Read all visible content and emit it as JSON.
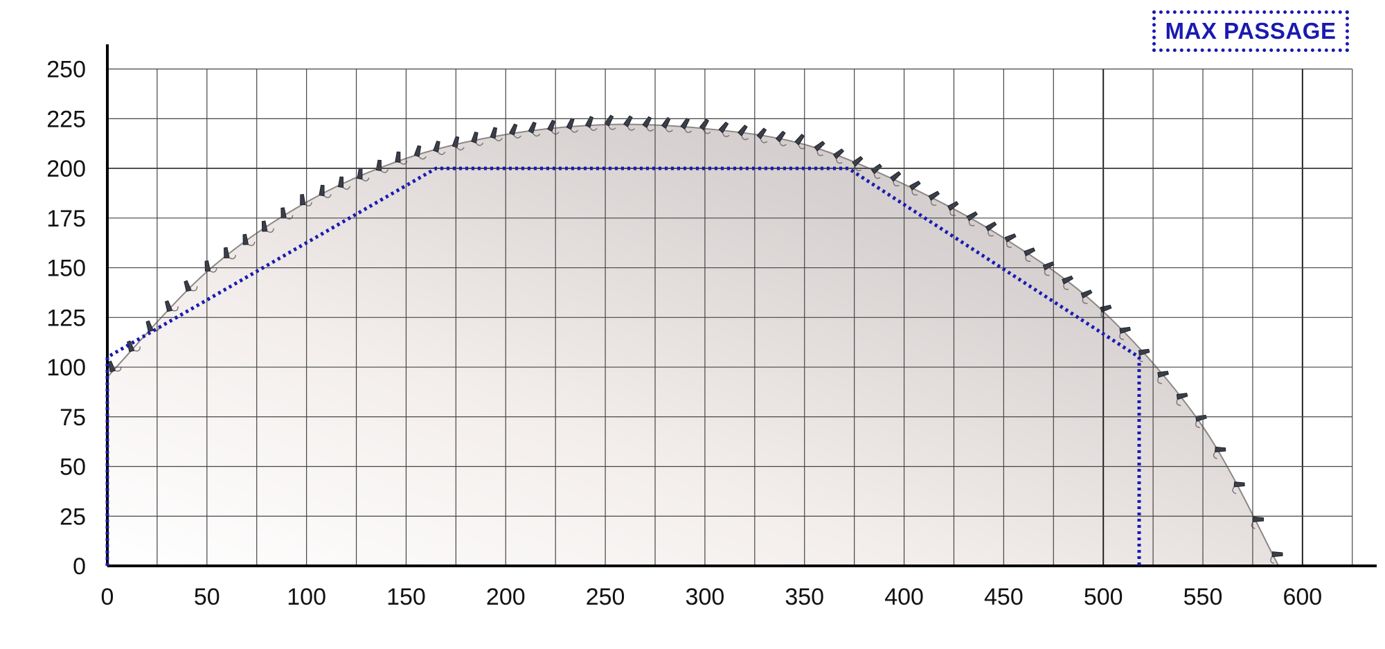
{
  "chart_data": {
    "type": "area",
    "title": "",
    "xlabel": "",
    "ylabel": "",
    "xlim": [
      0,
      625
    ],
    "ylim": [
      0,
      255
    ],
    "x_ticks": [
      0,
      50,
      100,
      150,
      200,
      250,
      300,
      350,
      400,
      450,
      500,
      550,
      600
    ],
    "y_ticks": [
      0,
      25,
      50,
      75,
      100,
      125,
      150,
      175,
      200,
      225,
      250
    ],
    "x_tick_labels": [
      "0",
      "50",
      "100",
      "150",
      "200",
      "250",
      "300",
      "350",
      "400",
      "450",
      "500",
      "550",
      "600"
    ],
    "y_tick_labels": [
      "0",
      "25",
      "50",
      "75",
      "100",
      "125",
      "150",
      "175",
      "200",
      "225",
      "250"
    ],
    "grid": true,
    "legend": {
      "label": "MAX PASSAGE",
      "placement": "top-right"
    },
    "series": [
      {
        "name": "MAX PASSAGE",
        "style": "dotted",
        "color": "#1a1ab0",
        "x": [
          0,
          0,
          165,
          372,
          518,
          518
        ],
        "y": [
          0,
          105,
          200,
          200,
          105,
          0
        ]
      }
    ],
    "blade_outline": {
      "color": "#cfc9c7",
      "x": [
        0,
        50,
        100,
        150,
        200,
        250,
        300,
        350,
        400,
        450,
        500,
        550,
        588
      ],
      "y": [
        95,
        148,
        183,
        205,
        217,
        222,
        220,
        212,
        192,
        165,
        128,
        70,
        0
      ]
    }
  }
}
